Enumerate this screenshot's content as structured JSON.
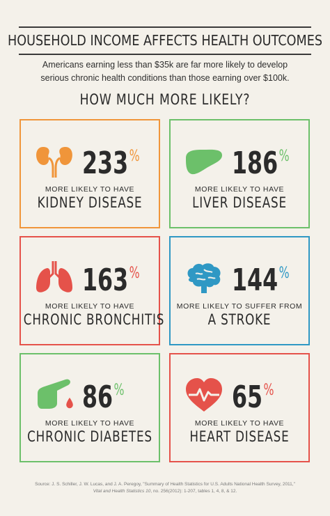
{
  "header": {
    "title": "HOUSEHOLD INCOME AFFECTS HEALTH OUTCOMES",
    "subtitle_line1": "Americans earning less than $35k are far more likely to develop",
    "subtitle_line2": "serious chronic health conditions than those earning over $100k.",
    "question": "HOW MUCH MORE LIKELY?"
  },
  "cards": [
    {
      "value": "233",
      "symbol": "%",
      "desc": "MORE LIKELY TO HAVE",
      "disease": "KIDNEY DISEASE",
      "color": "#f0953a",
      "icon": "kidneys-icon"
    },
    {
      "value": "186",
      "symbol": "%",
      "desc": "MORE LIKELY TO HAVE",
      "disease": "LIVER DISEASE",
      "color": "#6cc06a",
      "icon": "liver-icon"
    },
    {
      "value": "163",
      "symbol": "%",
      "desc": "MORE LIKELY TO HAVE",
      "disease": "CHRONIC BRONCHITIS",
      "color": "#e5524a",
      "icon": "lungs-icon"
    },
    {
      "value": "144",
      "symbol": "%",
      "desc": "MORE LIKELY TO SUFFER FROM",
      "disease": "A STROKE",
      "color": "#2f98c4",
      "icon": "brain-icon"
    },
    {
      "value": "86",
      "symbol": "%",
      "desc": "MORE LIKELY TO HAVE",
      "disease": "CHRONIC DIABETES",
      "color": "#6cc06a",
      "icon": "finger-prick-icon"
    },
    {
      "value": "65",
      "symbol": "%",
      "desc": "MORE LIKELY TO HAVE",
      "disease": "HEART DISEASE",
      "color": "#e5524a",
      "icon": "heart-icon"
    }
  ],
  "source": {
    "line1": "Source: J. S. Schiller, J. W. Lucas, and J. A. Peregoy, \"Summary of Health Statistics for U.S. Adults National Health Survey, 2011,\"",
    "line2_italic": "Vital and Health Statistics 10",
    "line2_rest": ", no. 256(2012): 1-207, tables 1, 4, 8, & 12."
  }
}
